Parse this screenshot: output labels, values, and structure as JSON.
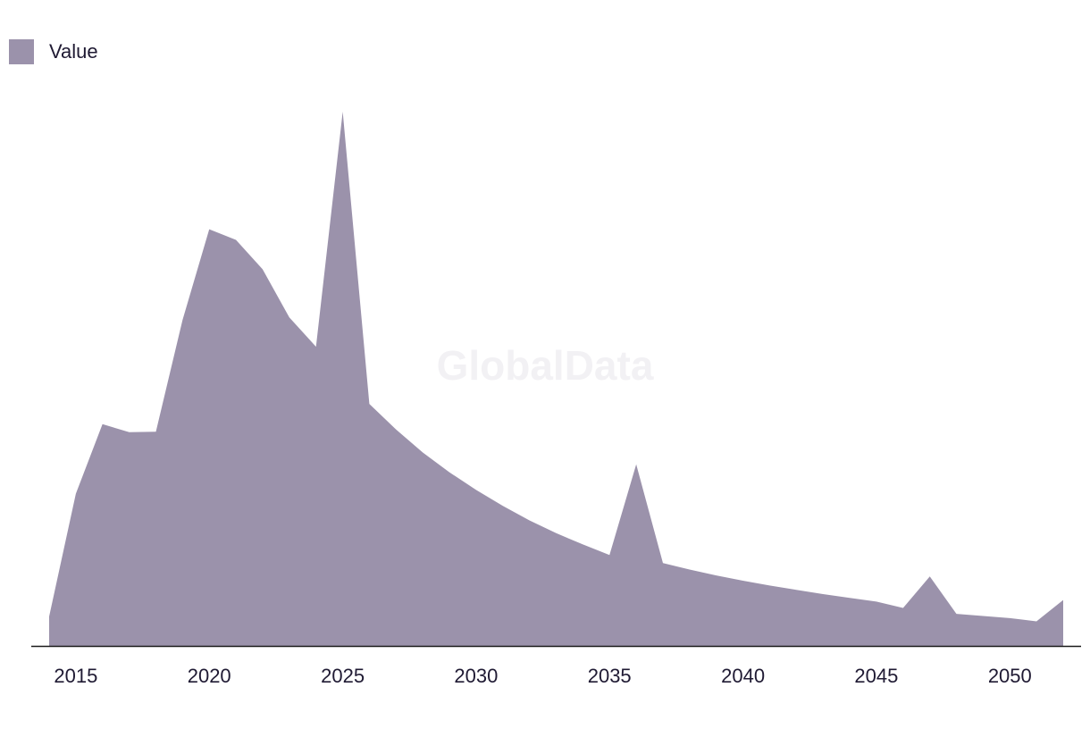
{
  "chart_data": {
    "type": "area",
    "series": [
      {
        "name": "Value",
        "color": "#9b92ab",
        "points": [
          [
            2014,
            5.5
          ],
          [
            2015,
            28.5
          ],
          [
            2016,
            41.5
          ],
          [
            2017,
            40.0
          ],
          [
            2018,
            40.1
          ],
          [
            2019,
            61.0
          ],
          [
            2020,
            78.0
          ],
          [
            2021,
            76.0
          ],
          [
            2022,
            70.5
          ],
          [
            2023,
            61.5
          ],
          [
            2024,
            56.0
          ],
          [
            2025,
            100.0
          ],
          [
            2026,
            45.3
          ],
          [
            2027,
            40.5
          ],
          [
            2028,
            36.2
          ],
          [
            2029,
            32.5
          ],
          [
            2030,
            29.2
          ],
          [
            2031,
            26.2
          ],
          [
            2032,
            23.5
          ],
          [
            2033,
            21.1
          ],
          [
            2034,
            19.0
          ],
          [
            2035,
            17.0
          ],
          [
            2036,
            34.0
          ],
          [
            2037,
            15.5
          ],
          [
            2038,
            14.3
          ],
          [
            2039,
            13.2
          ],
          [
            2040,
            12.2
          ],
          [
            2041,
            11.3
          ],
          [
            2042,
            10.5
          ],
          [
            2043,
            9.7
          ],
          [
            2044,
            9.0
          ],
          [
            2045,
            8.3
          ],
          [
            2046,
            7.1
          ],
          [
            2047,
            13.0
          ],
          [
            2048,
            6.0
          ],
          [
            2049,
            5.6
          ],
          [
            2050,
            5.2
          ],
          [
            2051,
            4.6
          ],
          [
            2052,
            8.6
          ]
        ]
      }
    ],
    "x_ticks": [
      "2015",
      "2020",
      "2025",
      "2030",
      "2035",
      "2040",
      "2045",
      "2050"
    ],
    "xlim": [
      2014,
      2052
    ],
    "ylim": [
      0,
      100
    ],
    "grid": false,
    "legend_position": "top-left",
    "axis_color": "#1a1a1a",
    "watermark": "GlobalData"
  }
}
